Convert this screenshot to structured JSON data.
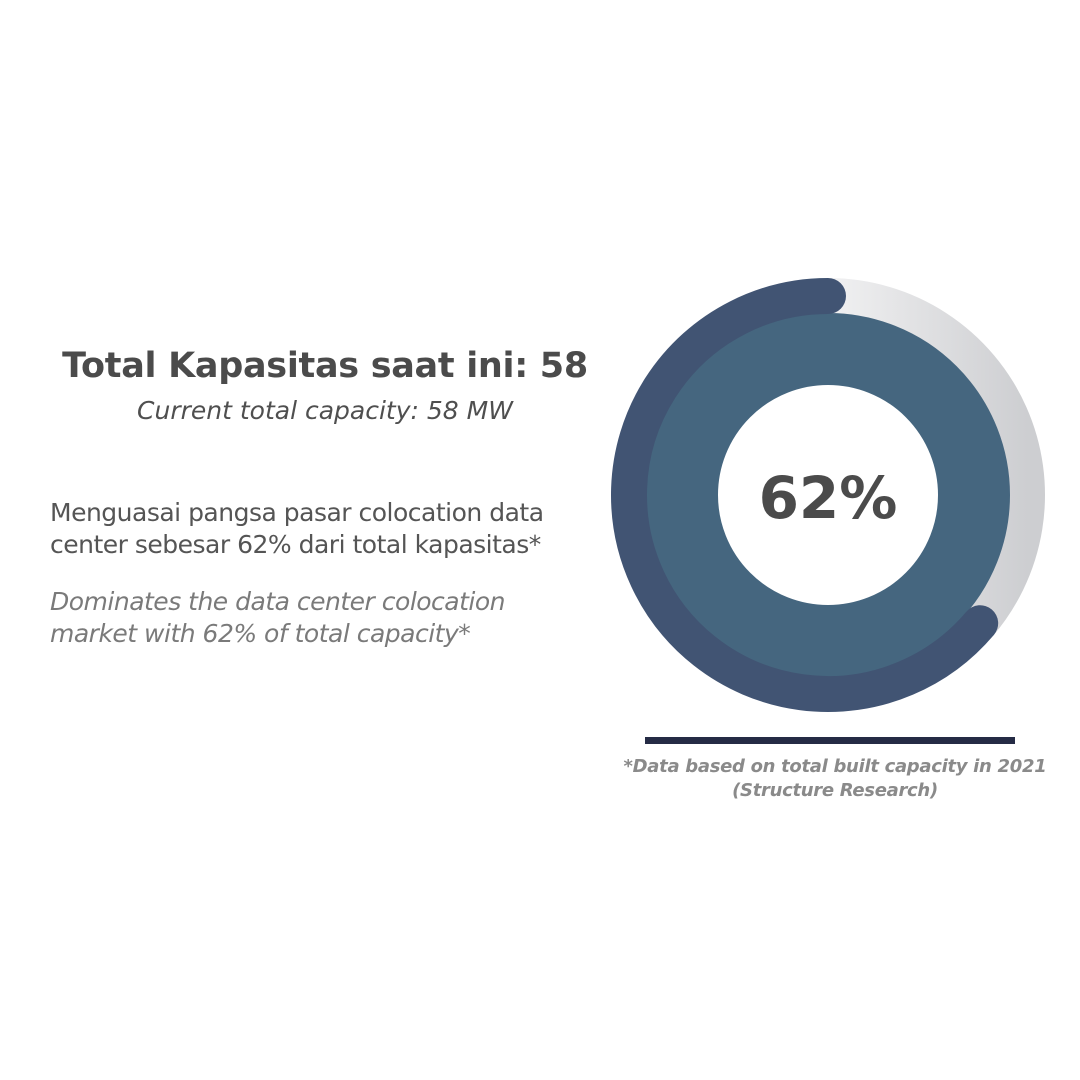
{
  "heading": "Total Kapasitas saat ini: 58",
  "subheading": "Current total capacity: 58 MW",
  "body_id": "Menguasai pangsa pasar colocation data\ncenter sebesar 62% dari total kapasitas*",
  "body_en": "Dominates the data center colocation\nmarket with 62% of total capacity*",
  "footnote": "*Data based on total built capacity in 2021\n(Structure Research)",
  "chart_data": {
    "type": "pie",
    "style": "donut",
    "values": [
      62,
      38
    ],
    "center_label": "62%",
    "colors": {
      "share_arc": "#415473",
      "remainder_arc": "#d6d7da",
      "inner_ring": "#45667f",
      "center_text": "#4b4b4b"
    }
  }
}
